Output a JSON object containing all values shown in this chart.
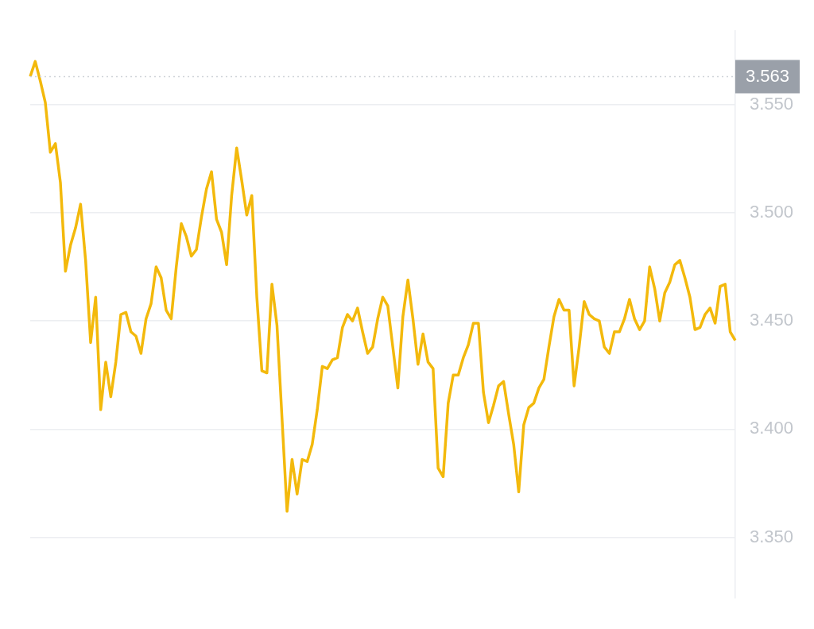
{
  "chart_data": {
    "type": "line",
    "categories": [
      null,
      null,
      null,
      null,
      null,
      null,
      null,
      null,
      null,
      null,
      null,
      null,
      null,
      null,
      null,
      null,
      null,
      null,
      null,
      null,
      null,
      null,
      null,
      null,
      null,
      null,
      null,
      null,
      null,
      null,
      null,
      null,
      null,
      null,
      null,
      null,
      null,
      null,
      null,
      null,
      null,
      null,
      null,
      null,
      null,
      null,
      null,
      null,
      null,
      null,
      null,
      null,
      null,
      null,
      null,
      null,
      null,
      null,
      null,
      null,
      null,
      null,
      null,
      null,
      null,
      null,
      null,
      null,
      null,
      null,
      null,
      null,
      null,
      null,
      null,
      null,
      null,
      null,
      null,
      null,
      null,
      null,
      null,
      null,
      null,
      null,
      null,
      null,
      null,
      null,
      null,
      null,
      null,
      null,
      null,
      null,
      null,
      null,
      null,
      null,
      null,
      null,
      null,
      null,
      null,
      null,
      null,
      null,
      null,
      null,
      null,
      null,
      null,
      null,
      null,
      null,
      null,
      null,
      null,
      null,
      null,
      null,
      null,
      null,
      null,
      null,
      null,
      null,
      null,
      null,
      null,
      null,
      null,
      null,
      null,
      null,
      null,
      null,
      null,
      null,
      null
    ],
    "series": [
      {
        "color": "#f3b90c",
        "values": [
          3.563,
          3.57,
          3.561,
          3.551,
          3.528,
          3.532,
          3.514,
          3.473,
          3.485,
          3.493,
          3.504,
          3.478,
          3.44,
          3.461,
          3.409,
          3.431,
          3.415,
          3.431,
          3.453,
          3.454,
          3.445,
          3.443,
          3.435,
          3.451,
          3.458,
          3.475,
          3.47,
          3.455,
          3.451,
          3.475,
          3.495,
          3.489,
          3.48,
          3.483,
          3.498,
          3.511,
          3.519,
          3.497,
          3.491,
          3.476,
          3.508,
          3.53,
          3.515,
          3.499,
          3.508,
          3.461,
          3.427,
          3.426,
          3.467,
          3.448,
          3.405,
          3.362,
          3.386,
          3.37,
          3.386,
          3.385,
          3.393,
          3.409,
          3.429,
          3.428,
          3.432,
          3.433,
          3.447,
          3.453,
          3.45,
          3.456,
          3.445,
          3.435,
          3.438,
          3.451,
          3.461,
          3.457,
          3.438,
          3.419,
          3.452,
          3.469,
          3.451,
          3.43,
          3.444,
          3.431,
          3.428,
          3.382,
          3.378,
          3.412,
          3.425,
          3.425,
          3.433,
          3.439,
          3.449,
          3.449,
          3.417,
          3.403,
          3.411,
          3.42,
          3.422,
          3.407,
          3.393,
          3.371,
          3.402,
          3.41,
          3.412,
          3.419,
          3.423,
          3.438,
          3.452,
          3.46,
          3.455,
          3.455,
          3.42,
          3.438,
          3.459,
          3.453,
          3.451,
          3.45,
          3.438,
          3.435,
          3.445,
          3.445,
          3.451,
          3.46,
          3.451,
          3.446,
          3.45,
          3.475,
          3.465,
          3.45,
          3.463,
          3.468,
          3.476,
          3.478,
          3.47,
          3.461,
          3.446,
          3.447,
          3.453,
          3.456,
          3.449,
          3.466,
          3.467,
          3.445,
          3.441
        ]
      }
    ],
    "ylim": [
      3.322,
      3.584
    ],
    "yticks": [
      {
        "value": 3.35,
        "label": "3.350"
      },
      {
        "value": 3.4,
        "label": "3.400"
      },
      {
        "value": 3.45,
        "label": "3.450"
      },
      {
        "value": 3.5,
        "label": "3.500"
      },
      {
        "value": 3.55,
        "label": "3.550"
      }
    ],
    "grid": "y",
    "marker": "none",
    "line_style": "solid",
    "tick_labels": "y",
    "ref_lines": [
      {
        "axis": "y",
        "value": 3.563,
        "label": "3.563",
        "color": "#cfd3d8",
        "line_style": "dotted"
      }
    ]
  }
}
